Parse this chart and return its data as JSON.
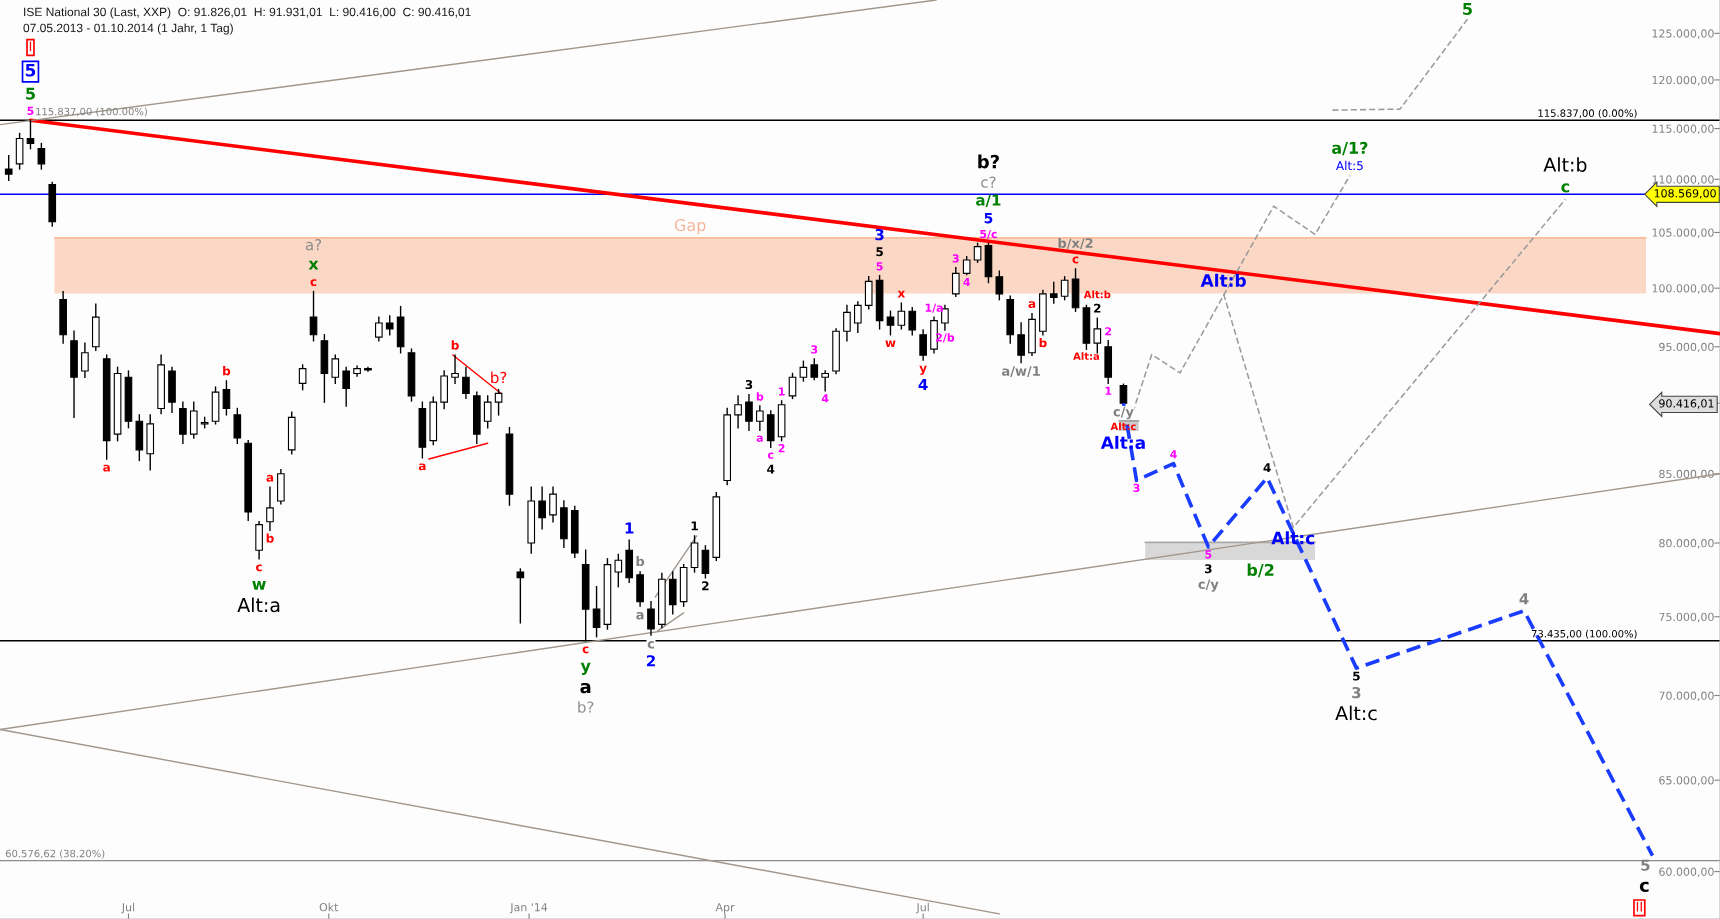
{
  "chart_data": {
    "type": "candlestick",
    "title": "ISE National 30 (Last, XXP)  O: 91.826,01  H: 91.931,01  L: 90.416,00  C: 90.416,01",
    "subtitle": "07.05.2013 - 01.10.2014 (1 Jahr, 1 Tag)",
    "log": "y",
    "xlim": [
      "2013-05-03",
      "2015-07-02"
    ],
    "xticks": [
      {
        "value": "2013-07-01",
        "label": "Jul"
      },
      {
        "value": "2013-10-01",
        "label": "Okt"
      },
      {
        "value": "2014-01-01",
        "label": "Jan '14"
      },
      {
        "value": "2014-04-01",
        "label": "Apr"
      },
      {
        "value": "2014-07-01",
        "label": "Jul"
      }
    ],
    "ylim": [
      57560,
      128700
    ],
    "yticks": [
      {
        "value": 60000,
        "label": "60.000,00"
      },
      {
        "value": 65000,
        "label": "65.000,00"
      },
      {
        "value": 70000,
        "label": "70.000,00"
      },
      {
        "value": 75000,
        "label": "75.000,00"
      },
      {
        "value": 80000,
        "label": "80.000,00"
      },
      {
        "value": 85000,
        "label": "85.000,00"
      },
      {
        "value": 90416.01,
        "label": "90.416,01"
      },
      {
        "value": 95000,
        "label": "95.000,00"
      },
      {
        "value": 100000,
        "label": "100.000,00"
      },
      {
        "value": 105000,
        "label": "105.000,00"
      },
      {
        "value": 110000,
        "label": "110.000,00"
      },
      {
        "value": 115000,
        "label": "115.000,00"
      },
      {
        "value": 120000,
        "label": "120.000,00"
      },
      {
        "value": 125000,
        "label": "125.000,00"
      }
    ],
    "ref_lines": [
      {
        "axis": "y",
        "value": 115837,
        "label": "115.837,00 (0.00%)",
        "color": "#000000"
      },
      {
        "axis": "y",
        "value": 108569,
        "color": "#0000ff"
      },
      {
        "axis": "y",
        "value": 73435,
        "label": "73.435,00 (100.00%)",
        "color": "#000000"
      },
      {
        "axis": "y",
        "value": 60576.62,
        "label": "60.576,62 (38.20%)",
        "color": "#8c8c8c"
      }
    ],
    "annotations": [
      {
        "text": "5",
        "x": "2013-05-17",
        "y": 115837
      },
      {
        "text": "5",
        "x": "2013-05-17",
        "y": 115837
      },
      {
        "text": "5",
        "x": "2013-05-17",
        "y": 115837
      },
      "I",
      {
        "text": "a",
        "x": "2013-06-21",
        "y": 86100
      },
      {
        "text": "b",
        "x": "2013-08-15",
        "y": 92200
      },
      {
        "text": "c",
        "x": "2013-09-24",
        "y": 99700
      },
      {
        "text": "x",
        "x": "2013-09-24",
        "y": 99700
      },
      {
        "text": "a?",
        "x": "2013-09-24",
        "y": 99700
      },
      {
        "text": "a",
        "x": "2013-09-04",
        "y": 84000
      },
      {
        "text": "b",
        "x": "2013-09-04",
        "y": 80900
      },
      {
        "text": "c",
        "x": "2013-08-30",
        "y": 78900
      },
      {
        "text": "w",
        "x": "2013-08-30",
        "y": 78900
      },
      {
        "text": "Alt:a",
        "x": "2013-08-30",
        "y": 78900
      },
      {
        "text": "a",
        "x": "2013-11-13",
        "y": 86200
      },
      {
        "text": "b",
        "x": "2013-11-28",
        "y": 94300
      },
      {
        "text": "b?",
        "x": "2013-12-18",
        "y": 91500
      },
      {
        "text": "c",
        "x": "2014-01-27",
        "y": 73435
      },
      {
        "text": "y",
        "x": "2014-01-27",
        "y": 73435
      },
      {
        "text": "a",
        "x": "2014-01-27",
        "y": 73435
      },
      "b?",
      {
        "text": "1",
        "x": "2014-02-16",
        "y": 80200
      },
      {
        "text": "b",
        "x": "2014-02-21",
        "y": 78000
      },
      {
        "text": "a",
        "x": "2014-02-21",
        "y": 75700
      },
      {
        "text": "c",
        "x": "2014-02-26",
        "y": 73800
      },
      {
        "text": "2",
        "x": "2014-02-26",
        "y": 73800
      },
      {
        "text": "1",
        "x": "2014-03-18",
        "y": 80500
      },
      {
        "text": "2",
        "x": "2014-03-23",
        "y": 77600
      },
      {
        "text": "3",
        "x": "2014-04-12",
        "y": 91100
      },
      {
        "text": "b",
        "x": "2014-04-17",
        "y": 90200
      },
      {
        "text": "a",
        "x": "2014-04-17",
        "y": 88300
      },
      {
        "text": "1",
        "x": "2014-04-27",
        "y": 90600
      },
      {
        "text": "2",
        "x": "2014-04-27",
        "y": 87500
      },
      {
        "text": "c",
        "x": "2014-04-22",
        "y": 87000
      },
      {
        "text": "4",
        "x": "2014-04-22",
        "y": 87000
      },
      {
        "text": "3",
        "x": "2014-05-12",
        "y": 94000
      },
      {
        "text": "4",
        "x": "2014-05-17",
        "y": 91400
      },
      {
        "text": "5",
        "x": "2014-06-11",
        "y": 101100
      },
      {
        "text": "5",
        "x": "2014-06-11",
        "y": 101100
      },
      {
        "text": "3",
        "x": "2014-06-11",
        "y": 101100
      },
      {
        "text": "w",
        "x": "2014-06-16",
        "y": 96000
      },
      {
        "text": "x",
        "x": "2014-06-21",
        "y": 98700
      },
      {
        "text": "y",
        "x": "2014-07-01",
        "y": 93900
      },
      {
        "text": "4",
        "x": "2014-07-01",
        "y": 93900
      },
      {
        "text": "1/a",
        "x": "2014-07-06",
        "y": 97500
      },
      {
        "text": "2/b",
        "x": "2014-07-11",
        "y": 96400
      },
      {
        "text": "3",
        "x": "2014-07-16",
        "y": 101800
      },
      {
        "text": "4",
        "x": "2014-07-21",
        "y": 101200
      },
      {
        "text": "5/c",
        "x": "2014-07-31",
        "y": 104000
      },
      {
        "text": "5",
        "x": "2014-07-31",
        "y": 104000
      },
      {
        "text": "a/1",
        "x": "2014-07-31",
        "y": 104000
      },
      {
        "text": "c?",
        "x": "2014-07-31",
        "y": 108569
      },
      "b?",
      {
        "text": "a/w/1",
        "x": "2014-08-15",
        "y": 93700
      },
      {
        "text": "a",
        "x": "2014-08-20",
        "y": 97800
      },
      {
        "text": "b",
        "x": "2014-08-25",
        "y": 96000
      },
      {
        "text": "c",
        "x": "2014-09-09",
        "y": 101700
      },
      {
        "text": "b/x/2",
        "x": "2014-09-09",
        "y": 101700
      },
      {
        "text": "2",
        "x": "2014-09-19",
        "y": 97400
      },
      {
        "text": "Alt:b",
        "x": "2014-09-19",
        "y": 97400
      },
      {
        "text": "Alt:a",
        "x": "2014-09-14",
        "y": 94800
      },
      {
        "text": "2",
        "x": "2014-09-24",
        "y": 95500
      },
      {
        "text": "1",
        "x": "2014-09-24",
        "y": 92000
      },
      {
        "text": "c/y",
        "x": "2014-10-01",
        "y": 90416.0
      },
      {
        "text": "Alt:c",
        "x": "2014-10-01",
        "y": 90416.0
      },
      {
        "text": "Alt:a",
        "x": "2014-10-01",
        "y": 90416.0
      },
      {
        "text": "3",
        "x": "2014-10-07",
        "y": 84510
      },
      {
        "text": "4",
        "x": "2014-10-24",
        "y": 85760
      },
      {
        "text": "5",
        "x": "2014-11-09",
        "y": 79730
      },
      {
        "text": "3",
        "x": "2014-11-09",
        "y": 79730
      },
      {
        "text": "c/y",
        "x": "2014-11-09",
        "y": 79730
      },
      {
        "text": "4",
        "x": "2014-12-06",
        "y": 84710
      },
      {
        "text": "5",
        "x": "2015-01-16",
        "y": 71700
      },
      {
        "text": "3",
        "x": "2015-01-16",
        "y": 71700
      },
      {
        "text": "Alt:c",
        "x": "2015-01-16",
        "y": 71700
      },
      {
        "text": "4",
        "x": "2015-04-03",
        "y": 75390
      },
      {
        "text": "5",
        "x": "2015-06-01",
        "y": 60840
      },
      {
        "text": "c",
        "x": "2015-06-01",
        "y": 60840
      },
      "II",
      {
        "text": "Alt:5",
        "x": "2015-01-13",
        "y": 110350
      },
      {
        "text": "a/1?",
        "x": "2015-01-13",
        "y": 110350
      },
      {
        "text": "Alt:b",
        "x": "2014-11-16",
        "y": 99500
      },
      {
        "text": "Alt:c",
        "x": "2014-12-18",
        "y": 81090
      },
      {
        "text": "c",
        "x": "2015-04-22",
        "y": 108100
      },
      {
        "text": "Alt:b",
        "x": "2015-04-22",
        "y": 108100
      },
      {
        "text": "5",
        "x": "2015-03-08",
        "y": 126550
      },
      {
        "text": "b/2",
        "x": "2014-12-03",
        "y": 78820
      },
      {
        "text": "Gap",
        "x": "2014-03-16",
        "y": 104500
      },
      {
        "text": "115.837,00 (100.00%)",
        "x": "2013-06-14",
        "y": 115837
      },
      {
        "text": "108.569,00",
        "y": 108569
      }
    ],
    "series": [
      {
        "color": "#000000",
        "x": [
          "2013-05-07",
          "2013-05-12",
          "2013-05-17",
          "2013-05-22",
          "2013-05-27",
          "2013-06-01",
          "2013-06-06",
          "2013-06-11",
          "2013-06-16",
          "2013-06-21",
          "2013-06-26",
          "2013-07-01",
          "2013-07-06",
          "2013-07-11",
          "2013-07-16",
          "2013-07-21",
          "2013-07-26",
          "2013-07-31",
          "2013-08-05",
          "2013-08-10",
          "2013-08-15",
          "2013-08-20",
          "2013-08-25",
          "2013-08-30",
          "2013-09-04",
          "2013-09-09",
          "2013-09-14",
          "2013-09-19",
          "2013-09-24",
          "2013-09-29",
          "2013-10-04",
          "2013-10-09",
          "2013-10-14",
          "2013-10-19",
          "2013-10-24",
          "2013-10-29",
          "2013-11-03",
          "2013-11-08",
          "2013-11-13",
          "2013-11-18",
          "2013-11-23",
          "2013-11-28",
          "2013-12-03",
          "2013-12-08",
          "2013-12-13",
          "2013-12-18",
          "2013-12-23",
          "2013-12-28",
          "2014-01-02",
          "2014-01-07",
          "2014-01-12",
          "2014-01-17",
          "2014-01-22",
          "2014-01-27",
          "2014-02-01",
          "2014-02-06",
          "2014-02-11",
          "2014-02-16",
          "2014-02-21",
          "2014-02-26",
          "2014-03-03",
          "2014-03-08",
          "2014-03-13",
          "2014-03-18",
          "2014-03-23",
          "2014-03-28",
          "2014-04-02",
          "2014-04-07",
          "2014-04-12",
          "2014-04-17",
          "2014-04-22",
          "2014-04-27",
          "2014-05-02",
          "2014-05-07",
          "2014-05-12",
          "2014-05-17",
          "2014-05-22",
          "2014-05-27",
          "2014-06-01",
          "2014-06-06",
          "2014-06-11",
          "2014-06-16",
          "2014-06-21",
          "2014-06-26",
          "2014-07-01",
          "2014-07-06",
          "2014-07-11",
          "2014-07-16",
          "2014-07-21",
          "2014-07-26",
          "2014-07-31",
          "2014-08-05",
          "2014-08-10",
          "2014-08-15",
          "2014-08-20",
          "2014-08-25",
          "2014-08-30",
          "2014-09-04",
          "2014-09-09",
          "2014-09-14",
          "2014-09-19",
          "2014-09-24",
          "2014-10-01"
        ],
        "ohlc": [
          [
            111000,
            112300,
            109900,
            110500
          ],
          [
            111500,
            114500,
            111000,
            114000
          ],
          [
            114000,
            115837,
            113000,
            113500
          ],
          [
            113000,
            113500,
            111000,
            111500
          ],
          [
            109500,
            109700,
            105600,
            106000
          ],
          [
            99000,
            99700,
            95300,
            96000
          ],
          [
            95500,
            96300,
            89300,
            92500
          ],
          [
            93000,
            95300,
            92500,
            94500
          ],
          [
            95000,
            98600,
            94700,
            97500
          ],
          [
            94000,
            94300,
            86100,
            87500
          ],
          [
            88000,
            93300,
            87500,
            92800
          ],
          [
            92500,
            93000,
            88500,
            89000
          ],
          [
            89000,
            89500,
            86000,
            86800
          ],
          [
            86500,
            89500,
            85300,
            88800
          ],
          [
            90000,
            94300,
            89600,
            93500
          ],
          [
            93000,
            93300,
            89700,
            90500
          ],
          [
            90000,
            90500,
            87300,
            88000
          ],
          [
            88000,
            90500,
            87700,
            89800
          ],
          [
            88800,
            89300,
            88500,
            88900
          ],
          [
            89000,
            91700,
            88800,
            91300
          ],
          [
            91500,
            92200,
            89500,
            90000
          ],
          [
            89500,
            90000,
            87300,
            87700
          ],
          [
            87300,
            87500,
            81600,
            82200
          ],
          [
            79500,
            81500,
            78900,
            81300
          ],
          [
            81500,
            84000,
            80900,
            82500
          ],
          [
            83000,
            85300,
            82800,
            85000
          ],
          [
            86800,
            89700,
            86500,
            89300
          ],
          [
            92000,
            93500,
            91500,
            93200
          ],
          [
            97500,
            99700,
            95500,
            96000
          ],
          [
            95500,
            96000,
            90500,
            92800
          ],
          [
            92500,
            94300,
            92000,
            94000
          ],
          [
            93000,
            93300,
            90200,
            91600
          ],
          [
            92800,
            93400,
            92600,
            93200
          ],
          [
            93200,
            93300,
            93000,
            93100
          ],
          [
            95800,
            97500,
            95500,
            97000
          ],
          [
            97000,
            97600,
            96000,
            96500
          ],
          [
            97500,
            98400,
            94500,
            95000
          ],
          [
            94500,
            94800,
            90600,
            91000
          ],
          [
            90000,
            90500,
            86200,
            87000
          ],
          [
            87500,
            90900,
            87200,
            90500
          ],
          [
            90500,
            93000,
            90000,
            92600
          ],
          [
            92500,
            94300,
            92000,
            92800
          ],
          [
            92500,
            93300,
            90800,
            91200
          ],
          [
            91000,
            91300,
            87300,
            88000
          ],
          [
            89000,
            91000,
            88500,
            90500
          ],
          [
            90500,
            91500,
            89500,
            91200
          ],
          [
            88000,
            88500,
            82700,
            83500
          ],
          [
            78000,
            78200,
            74600,
            77600
          ],
          [
            80000,
            84000,
            79300,
            83000
          ],
          [
            83000,
            84000,
            81000,
            81800
          ],
          [
            82000,
            84000,
            81500,
            83500
          ],
          [
            82500,
            83000,
            79700,
            80300
          ],
          [
            82300,
            82600,
            79000,
            79300
          ],
          [
            78500,
            79500,
            73435,
            75500
          ],
          [
            75500,
            77000,
            73700,
            74300
          ],
          [
            74500,
            78900,
            74200,
            78500
          ],
          [
            78000,
            79200,
            77000,
            78800
          ],
          [
            79500,
            80200,
            77300,
            77600
          ],
          [
            77800,
            78000,
            75700,
            76000
          ],
          [
            75500,
            76000,
            73800,
            74200
          ],
          [
            74500,
            77900,
            74300,
            77500
          ],
          [
            77500,
            78000,
            75200,
            75800
          ],
          [
            76000,
            78500,
            75700,
            78300
          ],
          [
            78300,
            80500,
            78000,
            80000
          ],
          [
            79500,
            79800,
            77600,
            77900
          ],
          [
            79000,
            83600,
            78800,
            83300
          ],
          [
            84500,
            90000,
            84200,
            89500
          ],
          [
            89500,
            91000,
            88500,
            90300
          ],
          [
            90500,
            91100,
            88300,
            89000
          ],
          [
            89000,
            90200,
            88300,
            89800
          ],
          [
            89500,
            89800,
            87000,
            87500
          ],
          [
            87800,
            90600,
            87500,
            90300
          ],
          [
            91000,
            92800,
            90800,
            92500
          ],
          [
            92500,
            93800,
            92200,
            93300
          ],
          [
            93500,
            94000,
            92300,
            92500
          ],
          [
            92500,
            93000,
            91400,
            92800
          ],
          [
            93000,
            96500,
            92800,
            96300
          ],
          [
            96300,
            98500,
            95500,
            97900
          ],
          [
            97000,
            98800,
            96200,
            98500
          ],
          [
            98500,
            101000,
            98200,
            100600
          ],
          [
            100700,
            101100,
            96500,
            97200
          ],
          [
            97500,
            98000,
            96000,
            96800
          ],
          [
            96800,
            98700,
            96500,
            98000
          ],
          [
            98000,
            98300,
            96000,
            96400
          ],
          [
            96000,
            96400,
            93900,
            94300
          ],
          [
            94800,
            97500,
            94500,
            97200
          ],
          [
            97000,
            98500,
            96400,
            98200
          ],
          [
            99500,
            101800,
            99300,
            101300
          ],
          [
            101300,
            102800,
            101200,
            102500
          ],
          [
            102500,
            104000,
            102300,
            103700
          ],
          [
            103800,
            104000,
            100500,
            101000
          ],
          [
            101000,
            101500,
            99000,
            99500
          ],
          [
            99000,
            99300,
            95300,
            96000
          ],
          [
            96000,
            97000,
            93700,
            94300
          ],
          [
            94500,
            97800,
            94300,
            97300
          ],
          [
            96300,
            99800,
            96000,
            99500
          ],
          [
            99500,
            100500,
            98700,
            99200
          ],
          [
            99300,
            101000,
            99000,
            100700
          ],
          [
            100800,
            101700,
            98000,
            98300
          ],
          [
            98300,
            98500,
            94800,
            95300
          ],
          [
            95300,
            97400,
            94500,
            96500
          ],
          [
            95000,
            95500,
            92000,
            92500
          ],
          [
            91826.01,
            91931.01,
            90416.0,
            90416.01
          ]
        ]
      },
      {
        "type": "line",
        "color": "#ff0000",
        "line_style": "solid",
        "x": [
          "2013-05-17",
          "2015-07-02"
        ],
        "values": [
          115837,
          96100
        ]
      },
      {
        "type": "line",
        "color": "#a0968c",
        "line_style": "solid",
        "x": [
          "2013-05-03",
          "2014-07-07"
        ],
        "values": [
          115400,
          128700
        ]
      },
      {
        "type": "line",
        "color": "#a0968c",
        "line_style": "solid",
        "x": [
          "2013-05-03",
          "2015-07-02"
        ],
        "values": [
          67950,
          85000
        ]
      },
      {
        "type": "line",
        "color": "#a0968c",
        "line_style": "solid",
        "x": [
          "2013-05-03",
          "2014-08-05"
        ],
        "values": [
          67950,
          57820
        ]
      },
      {
        "type": "line",
        "color": "#ff0000",
        "line_style": "solid",
        "x": [
          "2013-11-16",
          "2013-12-13"
        ],
        "values": [
          86110,
          87300
        ]
      },
      {
        "type": "line",
        "color": "#ff0000",
        "line_style": "solid",
        "x": [
          "2013-11-27",
          "2013-12-19"
        ],
        "values": [
          94320,
          91210
        ]
      },
      {
        "type": "line",
        "color": "#a0968c",
        "line_style": "solid",
        "x": [
          "2014-03-01",
          "2014-03-13"
        ],
        "values": [
          74080,
          75250
        ]
      },
      {
        "type": "line",
        "color": "#a0968c",
        "line_style": "solid",
        "x": [
          "2014-02-28",
          "2014-03-19"
        ],
        "values": [
          76310,
          80500
        ]
      },
      {
        "type": "line",
        "color": "#1a3cff",
        "line_style": "dashed",
        "x": [
          "2014-10-01",
          "2014-10-07",
          "2014-10-24",
          "2014-11-09",
          "2014-12-06",
          "2015-01-16",
          "2015-04-03",
          "2015-06-01"
        ],
        "values": [
          90416.01,
          84510,
          85760,
          79730,
          84710,
          71700,
          75390,
          60840
        ]
      },
      {
        "type": "line",
        "color": "#9a9a9a",
        "line_style": "dashed",
        "x": [
          "2014-10-04",
          "2014-10-14",
          "2014-10-27",
          "2014-12-09",
          "2014-12-28",
          "2015-01-13"
        ],
        "values": [
          89020,
          94360,
          92850,
          107440,
          104820,
          110350
        ]
      },
      {
        "type": "line",
        "color": "#9a9a9a",
        "line_style": "dashed",
        "x": [
          "2014-11-16",
          "2014-12-18",
          "2015-04-22"
        ],
        "values": [
          99500,
          81090,
          108100
        ]
      },
      {
        "type": "line",
        "color": "#9a9a9a",
        "line_style": "dashed",
        "x": [
          "2015-01-05",
          "2015-02-05",
          "2015-03-08"
        ],
        "values": [
          116870,
          116970,
          126550
        ]
      },
      {
        "type": "line",
        "color": "#f7a97e",
        "line_style": "solid",
        "x": [
          "2013-05-28",
          "2015-05-29"
        ],
        "values": [
          104500,
          104500
        ],
        "lower": [
          99540,
          99540
        ],
        "upper": [
          104500,
          104500
        ]
      },
      {
        "type": "line",
        "color": "#a8a8a8",
        "line_style": "solid",
        "x": [
          "2014-10-11",
          "2014-12-28"
        ],
        "values": [
          80040,
          80040
        ],
        "lower": [
          78820,
          78820
        ],
        "upper": [
          80040,
          80040
        ]
      },
      {
        "type": "line",
        "color": "#8c8c8c",
        "line_style": "solid",
        "x": [
          "2014-09-29",
          "2014-10-08"
        ],
        "values": [
          89030,
          89030
        ],
        "lower": [
          88250,
          88250
        ],
        "upper": [
          89030,
          89030
        ]
      }
    ]
  }
}
